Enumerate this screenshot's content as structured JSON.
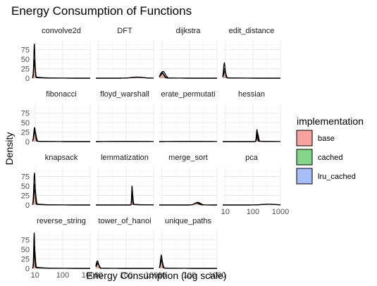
{
  "chart_data": {
    "type": "area",
    "title": "Energy Consumption of Functions",
    "xlabel": "Energy Consumption (log scale)",
    "ylabel": "Density",
    "x_scale": "log10",
    "xlim": [
      8,
      1000
    ],
    "ylim": [
      0,
      100
    ],
    "x_ticks": [
      10,
      100,
      1000
    ],
    "x_tick_labels": [
      "10",
      "100",
      "1000"
    ],
    "y_ticks": [
      0,
      25,
      50,
      75
    ],
    "y_tick_labels": [
      "0",
      "25",
      "50",
      "75"
    ],
    "grid": true,
    "facet_columns": 4,
    "legend": {
      "title": "implementation",
      "position": "right",
      "entries": [
        {
          "label": "base",
          "color": "#F8A3A0"
        },
        {
          "label": "cached",
          "color": "#84D58A"
        },
        {
          "label": "lru_cached",
          "color": "#A6BDF7"
        }
      ]
    },
    "panels": [
      {
        "name": "convolve2d",
        "peaks": [
          {
            "series": "base",
            "center": 9.4,
            "height": 92,
            "width": 0.02
          },
          {
            "series": "cached",
            "center": 9.6,
            "height": 50,
            "width": 0.025
          },
          {
            "series": "lru_cached",
            "center": 9.5,
            "height": 40,
            "width": 0.03
          }
        ]
      },
      {
        "name": "DFT",
        "peaks": [
          {
            "series": "base",
            "center": 250,
            "height": 3,
            "width": 0.2
          },
          {
            "series": "cached",
            "center": 260,
            "height": 2.5,
            "width": 0.22
          },
          {
            "series": "lru_cached",
            "center": 270,
            "height": 2.5,
            "width": 0.22
          }
        ]
      },
      {
        "name": "dijkstra",
        "peaks": [
          {
            "series": "base",
            "center": 10,
            "height": 16,
            "width": 0.06
          },
          {
            "series": "cached",
            "center": 10.5,
            "height": 12,
            "width": 0.07
          },
          {
            "series": "lru_cached",
            "center": 11,
            "height": 18,
            "width": 0.08
          }
        ]
      },
      {
        "name": "edit_distance",
        "peaks": [
          {
            "series": "base",
            "center": 9.2,
            "height": 40,
            "width": 0.03
          },
          {
            "series": "cached",
            "center": 9.4,
            "height": 25,
            "width": 0.035
          },
          {
            "series": "lru_cached",
            "center": 9.6,
            "height": 18,
            "width": 0.04
          }
        ]
      },
      {
        "name": "fibonacci",
        "peaks": [
          {
            "series": "base",
            "center": 9.6,
            "height": 37,
            "width": 0.03
          },
          {
            "series": "cached",
            "center": 9.8,
            "height": 30,
            "width": 0.035
          },
          {
            "series": "lru_cached",
            "center": 10,
            "height": 25,
            "width": 0.04
          }
        ]
      },
      {
        "name": "floyd_warshall",
        "peaks": [
          {
            "series": "base",
            "center": 100,
            "height": 0.6,
            "width": 0.5
          },
          {
            "series": "cached",
            "center": 120,
            "height": 0.5,
            "width": 0.5
          },
          {
            "series": "lru_cached",
            "center": 140,
            "height": 0.5,
            "width": 0.5
          }
        ]
      },
      {
        "name": "erate_permutati",
        "peaks": [
          {
            "series": "base",
            "center": 100,
            "height": 0.6,
            "width": 0.5
          },
          {
            "series": "cached",
            "center": 120,
            "height": 0.5,
            "width": 0.5
          },
          {
            "series": "lru_cached",
            "center": 140,
            "height": 0.5,
            "width": 0.5
          }
        ]
      },
      {
        "name": "hessian",
        "peaks": [
          {
            "series": "base",
            "center": 140,
            "height": 32,
            "width": 0.02
          },
          {
            "series": "cached",
            "center": 145,
            "height": 25,
            "width": 0.025
          },
          {
            "series": "lru_cached",
            "center": 150,
            "height": 20,
            "width": 0.03
          }
        ]
      },
      {
        "name": "knapsack",
        "peaks": [
          {
            "series": "base",
            "center": 9.5,
            "height": 85,
            "width": 0.025
          },
          {
            "series": "cached",
            "center": 9.7,
            "height": 55,
            "width": 0.03
          },
          {
            "series": "lru_cached",
            "center": 9.9,
            "height": 40,
            "width": 0.035
          }
        ]
      },
      {
        "name": "lemmatization",
        "peaks": [
          {
            "series": "base",
            "center": 165,
            "height": 52,
            "width": 0.015
          },
          {
            "series": "cached",
            "center": 168,
            "height": 40,
            "width": 0.018
          },
          {
            "series": "lru_cached",
            "center": 171,
            "height": 30,
            "width": 0.02
          }
        ]
      },
      {
        "name": "merge_sort",
        "peaks": [
          {
            "series": "base",
            "center": 180,
            "height": 5,
            "width": 0.08
          },
          {
            "series": "cached",
            "center": 190,
            "height": 6,
            "width": 0.09
          },
          {
            "series": "lru_cached",
            "center": 200,
            "height": 7,
            "width": 0.1
          }
        ]
      },
      {
        "name": "pca",
        "peaks": [
          {
            "series": "base",
            "center": 350,
            "height": 2,
            "width": 0.25
          },
          {
            "series": "cached",
            "center": 380,
            "height": 2,
            "width": 0.25
          },
          {
            "series": "lru_cached",
            "center": 400,
            "height": 2,
            "width": 0.25
          }
        ]
      },
      {
        "name": "reverse_string",
        "peaks": [
          {
            "series": "base",
            "center": 9.3,
            "height": 95,
            "width": 0.018
          },
          {
            "series": "cached",
            "center": 9.5,
            "height": 60,
            "width": 0.022
          },
          {
            "series": "lru_cached",
            "center": 9.7,
            "height": 45,
            "width": 0.026
          }
        ]
      },
      {
        "name": "tower_of_hanoi",
        "peaks": [
          {
            "series": "base",
            "center": 9.1,
            "height": 20,
            "width": 0.04
          },
          {
            "series": "cached",
            "center": 9.3,
            "height": 15,
            "width": 0.045
          },
          {
            "series": "lru_cached",
            "center": 9.5,
            "height": 12,
            "width": 0.05
          }
        ]
      },
      {
        "name": "unique_paths",
        "peaks": [
          {
            "series": "base",
            "center": 9.5,
            "height": 35,
            "width": 0.03
          },
          {
            "series": "cached",
            "center": 9.7,
            "height": 25,
            "width": 0.035
          },
          {
            "series": "lru_cached",
            "center": 9.9,
            "height": 20,
            "width": 0.04
          }
        ]
      }
    ]
  }
}
